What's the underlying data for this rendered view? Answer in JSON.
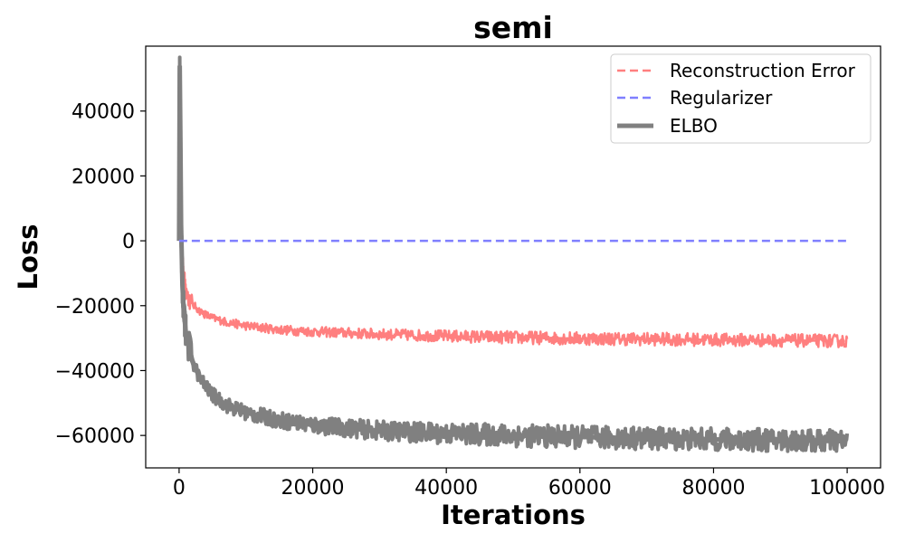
{
  "chart_data": {
    "type": "line",
    "title": "semi",
    "xlabel": "Iterations",
    "ylabel": "Loss",
    "xlim": [
      -5000,
      105000
    ],
    "ylim": [
      -70000,
      60000
    ],
    "xticks": [
      0,
      20000,
      40000,
      60000,
      80000,
      100000
    ],
    "xtick_labels": [
      "0",
      "20000",
      "40000",
      "60000",
      "80000",
      "100000"
    ],
    "yticks": [
      -60000,
      -40000,
      -20000,
      0,
      20000,
      40000
    ],
    "ytick_labels": [
      "−60000",
      "−40000",
      "−20000",
      "0",
      "20000",
      "40000"
    ],
    "grid": false,
    "legend_position": "top-right",
    "series": [
      {
        "name": "Reconstruction Error",
        "color": "#ff7f7f",
        "style": "dashed",
        "noise": 2000,
        "x": [
          0,
          100,
          200,
          300,
          500,
          700,
          1000,
          1500,
          2000,
          3000,
          4000,
          5000,
          7000,
          10000,
          15000,
          20000,
          30000,
          40000,
          50000,
          60000,
          70000,
          80000,
          90000,
          100000
        ],
        "y": [
          5000,
          27000,
          20000,
          5000,
          -5000,
          -11000,
          -15000,
          -18000,
          -19500,
          -21500,
          -22800,
          -23800,
          -25000,
          -26200,
          -27400,
          -28000,
          -28800,
          -29400,
          -29800,
          -30100,
          -30300,
          -30500,
          -30700,
          -30900
        ]
      },
      {
        "name": "Regularizer",
        "color": "#7f7fff",
        "style": "dashed",
        "noise": 0,
        "x": [
          0,
          100000
        ],
        "y": [
          0,
          0
        ]
      },
      {
        "name": "ELBO",
        "color": "#808080",
        "style": "solid",
        "noise": 3500,
        "x": [
          0,
          100,
          200,
          300,
          500,
          700,
          1000,
          1500,
          2000,
          3000,
          4000,
          5000,
          7000,
          10000,
          15000,
          20000,
          30000,
          40000,
          50000,
          60000,
          70000,
          80000,
          90000,
          100000
        ],
        "y": [
          0,
          54000,
          30000,
          5000,
          -14000,
          -22000,
          -28000,
          -33000,
          -37000,
          -42000,
          -45000,
          -47500,
          -50500,
          -53000,
          -55300,
          -56800,
          -58500,
          -59400,
          -60000,
          -60500,
          -60900,
          -61200,
          -61500,
          -61800
        ]
      }
    ]
  }
}
